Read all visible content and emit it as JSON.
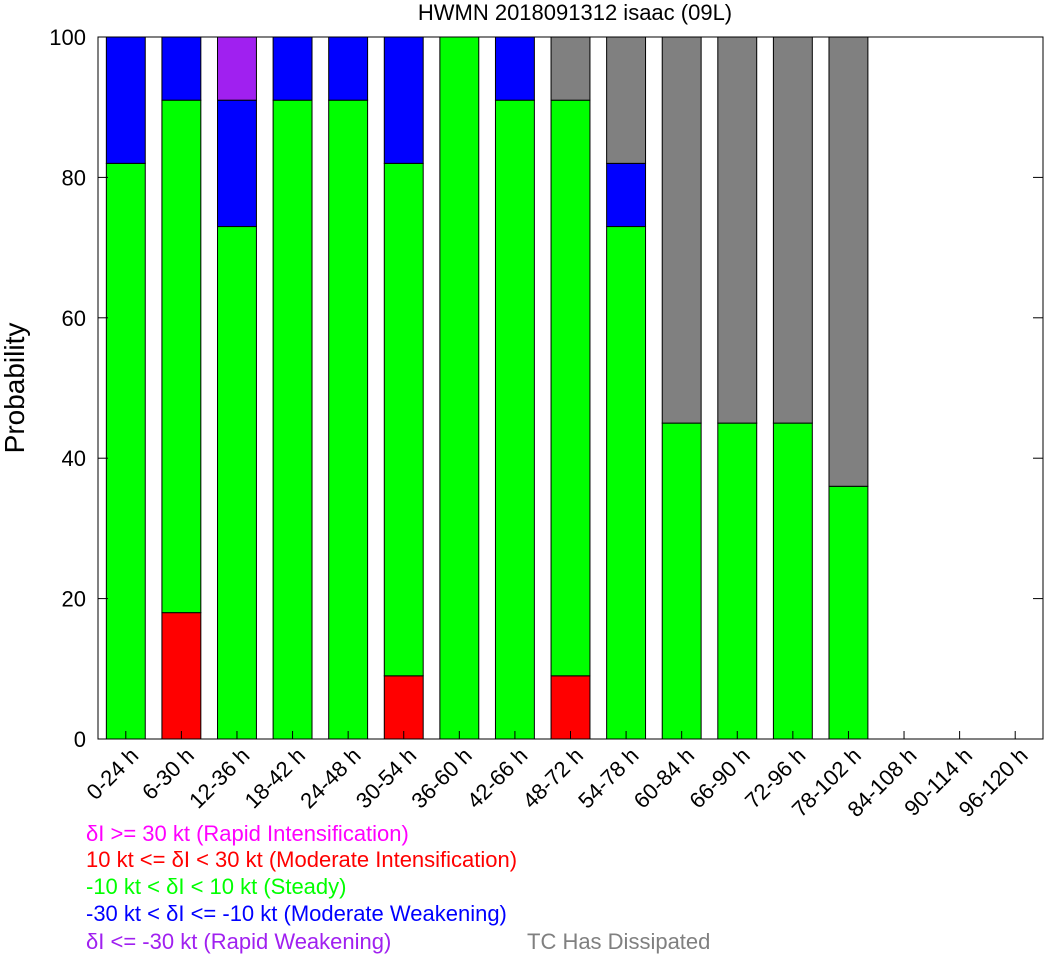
{
  "chart_data": {
    "type": "bar",
    "stacked": true,
    "title": "HWMN 2018091312 isaac (09L)",
    "xlabel": "",
    "ylabel": "Probability",
    "ylim": [
      0,
      100
    ],
    "yticks": [
      "0",
      "20",
      "40",
      "60",
      "80",
      "100"
    ],
    "categories": [
      "0-24 h",
      "6-30 h",
      "12-36 h",
      "18-42 h",
      "24-48 h",
      "30-54 h",
      "36-60 h",
      "42-66 h",
      "48-72 h",
      "54-78 h",
      "60-84 h",
      "66-90 h",
      "72-96 h",
      "78-102 h",
      "84-108 h",
      "90-114 h",
      "96-120 h"
    ],
    "series": [
      {
        "key": "mi",
        "color": "#ff0000",
        "values": [
          0,
          18,
          0,
          0,
          0,
          9,
          0,
          0,
          9,
          0,
          0,
          0,
          0,
          0,
          0,
          0,
          0
        ]
      },
      {
        "key": "steady",
        "color": "#00ff00",
        "values": [
          82,
          73,
          73,
          91,
          91,
          73,
          100,
          91,
          82,
          73,
          45,
          45,
          45,
          36,
          0,
          0,
          0
        ]
      },
      {
        "key": "mw",
        "color": "#0000ff",
        "values": [
          18,
          9,
          18,
          9,
          9,
          18,
          0,
          9,
          0,
          9,
          0,
          0,
          0,
          0,
          0,
          0,
          0
        ]
      },
      {
        "key": "rw",
        "color": "#a020f0",
        "values": [
          0,
          0,
          9,
          0,
          0,
          0,
          0,
          0,
          0,
          0,
          0,
          0,
          0,
          0,
          0,
          0,
          0
        ]
      },
      {
        "key": "dissipated",
        "color": "#808080",
        "values": [
          0,
          0,
          0,
          0,
          0,
          0,
          0,
          0,
          9,
          18,
          55,
          55,
          55,
          64,
          0,
          0,
          0
        ]
      }
    ],
    "legend": [
      {
        "text": "δI >= 30 kt (Rapid Intensification)",
        "color": "#ff00ff"
      },
      {
        "text": "10 kt <= δI < 30 kt (Moderate Intensification)",
        "color": "#ff0000"
      },
      {
        "text": "-10 kt < δI < 10 kt (Steady)",
        "color": "#00ff00"
      },
      {
        "text": "-30 kt < δI <= -10 kt (Moderate Weakening)",
        "color": "#0000ff"
      },
      {
        "text": "δI <= -30 kt (Rapid Weakening)",
        "color": "#a020f0"
      },
      {
        "text": "TC Has Dissipated",
        "color": "#808080"
      }
    ],
    "legend_placement": "bottom-left",
    "grid": false
  }
}
